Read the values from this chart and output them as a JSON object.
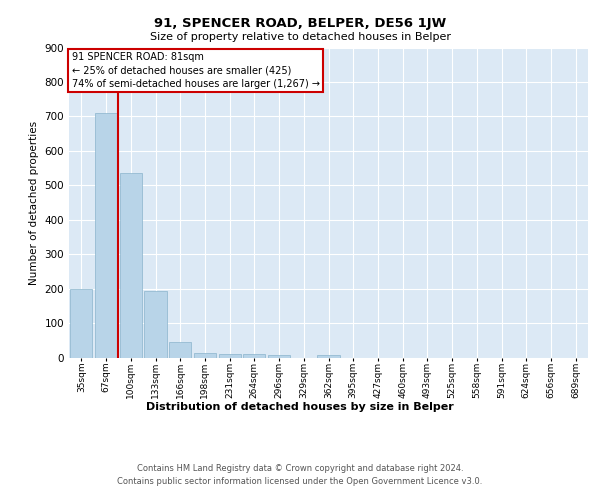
{
  "title": "91, SPENCER ROAD, BELPER, DE56 1JW",
  "subtitle": "Size of property relative to detached houses in Belper",
  "xlabel": "Distribution of detached houses by size in Belper",
  "ylabel": "Number of detached properties",
  "categories": [
    "35sqm",
    "67sqm",
    "100sqm",
    "133sqm",
    "166sqm",
    "198sqm",
    "231sqm",
    "264sqm",
    "296sqm",
    "329sqm",
    "362sqm",
    "395sqm",
    "427sqm",
    "460sqm",
    "493sqm",
    "525sqm",
    "558sqm",
    "591sqm",
    "624sqm",
    "656sqm",
    "689sqm"
  ],
  "values": [
    200,
    710,
    535,
    192,
    44,
    14,
    11,
    10,
    7,
    0,
    8,
    0,
    0,
    0,
    0,
    0,
    0,
    0,
    0,
    0,
    0
  ],
  "bar_color": "#b8d4e8",
  "bar_edge_color": "#8ab4cc",
  "property_line_x": 1.5,
  "annotation_line1": "91 SPENCER ROAD: 81sqm",
  "annotation_line2": "← 25% of detached houses are smaller (425)",
  "annotation_line3": "74% of semi-detached houses are larger (1,267) →",
  "annotation_box_color": "#ffffff",
  "annotation_box_edge": "#cc0000",
  "property_line_color": "#cc0000",
  "background_color": "#dce9f5",
  "ylim": [
    0,
    900
  ],
  "yticks": [
    0,
    100,
    200,
    300,
    400,
    500,
    600,
    700,
    800,
    900
  ],
  "footnote1": "Contains HM Land Registry data © Crown copyright and database right 2024.",
  "footnote2": "Contains public sector information licensed under the Open Government Licence v3.0."
}
